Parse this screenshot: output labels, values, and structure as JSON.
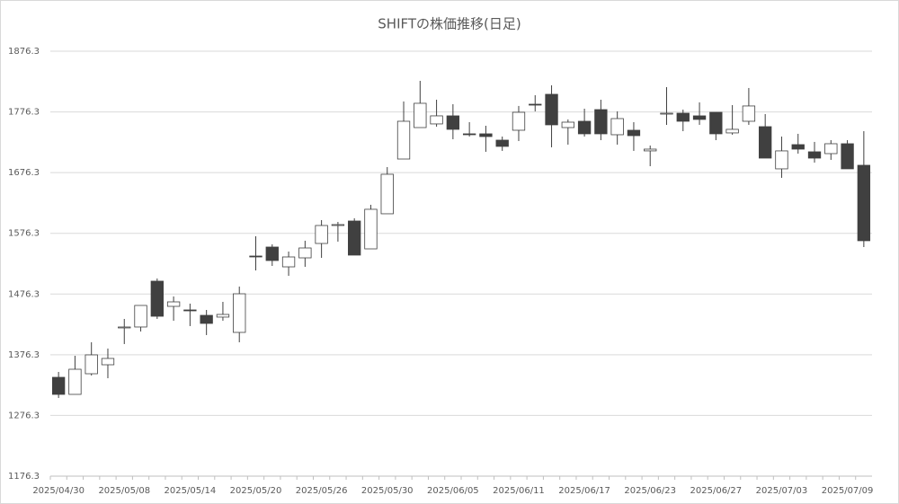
{
  "chart_data": {
    "type": "candlestick",
    "title": "SHIFTの株価推移(日足)",
    "categories": [
      "2025/04/30",
      null,
      null,
      null,
      "2025/05/08",
      null,
      null,
      null,
      "2025/05/14",
      null,
      null,
      null,
      "2025/05/20",
      null,
      null,
      null,
      "2025/05/26",
      null,
      null,
      null,
      "2025/05/30",
      null,
      null,
      null,
      "2025/06/05",
      null,
      null,
      null,
      "2025/06/11",
      null,
      null,
      null,
      "2025/06/17",
      null,
      null,
      null,
      "2025/06/23",
      null,
      null,
      null,
      "2025/06/27",
      null,
      null,
      null,
      "2025/07/03",
      null,
      null,
      null,
      "2025/07/09",
      null
    ],
    "open": [
      1339.1,
      1311.0,
      1345.0,
      1359.8,
      1420.5,
      1422.0,
      1497.5,
      1456.0,
      1450.1,
      1441.2,
      1438.3,
      1413.1,
      1538.9,
      1553.7,
      1521.1,
      1535.9,
      1559.6,
      1589.2,
      1596.6,
      1550.7,
      1608.5,
      1698.7,
      1750.5,
      1756.5,
      1769.8,
      1740.2,
      1740.2,
      1729.8,
      1746.1,
      1789.0,
      1805.3,
      1750.5,
      1760.9,
      1780.1,
      1738.7,
      1746.1,
      1712.1,
      1772.7,
      1774.2,
      1769.8,
      1775.7,
      1741.7,
      1760.9,
      1752.0,
      1682.5,
      1722.4,
      1710.6,
      1707.6,
      1723.9,
      1688.4
    ],
    "high": [
      1348.0,
      1374.6,
      1396.8,
      1386.5,
      1435.3,
      1457.5,
      1501.9,
      1472.3,
      1460.5,
      1450.1,
      1463.4,
      1488.6,
      1571.5,
      1558.1,
      1546.3,
      1564.1,
      1598.1,
      1595.1,
      1601.1,
      1623.3,
      1685.4,
      1793.5,
      1827.5,
      1796.4,
      1789.0,
      1759.4,
      1753.5,
      1735.7,
      1786.1,
      1803.8,
      1820.1,
      1763.9,
      1781.6,
      1796.4,
      1777.2,
      1759.4,
      1720.9,
      1817.1,
      1780.1,
      1792.0,
      1775.7,
      1787.5,
      1815.7,
      1772.7,
      1735.7,
      1740.2,
      1726.9,
      1729.8,
      1729.8,
      1744.6
    ],
    "low": [
      1305.1,
      1311.0,
      1342.1,
      1337.6,
      1393.9,
      1414.6,
      1435.3,
      1432.3,
      1423.5,
      1408.7,
      1432.3,
      1396.8,
      1515.2,
      1522.6,
      1506.3,
      1521.1,
      1535.9,
      1562.6,
      1540.4,
      1550.7,
      1608.5,
      1698.7,
      1750.5,
      1752.0,
      1731.3,
      1735.7,
      1710.6,
      1712.1,
      1728.3,
      1777.2,
      1718.0,
      1722.4,
      1735.7,
      1729.8,
      1722.4,
      1712.1,
      1686.9,
      1755.0,
      1744.6,
      1755.0,
      1729.8,
      1738.7,
      1755.0,
      1700.2,
      1667.7,
      1707.6,
      1692.8,
      1697.3,
      1682.5,
      1553.7
    ],
    "close": [
      1311.0,
      1352.4,
      1376.1,
      1370.2,
      1422.0,
      1457.5,
      1439.7,
      1463.4,
      1448.6,
      1427.9,
      1442.7,
      1476.7,
      1537.4,
      1531.5,
      1537.4,
      1552.2,
      1589.2,
      1590.7,
      1540.4,
      1615.9,
      1673.6,
      1760.9,
      1790.5,
      1769.8,
      1747.6,
      1738.7,
      1735.7,
      1719.5,
      1775.7,
      1787.5,
      1755.0,
      1759.4,
      1740.2,
      1740.2,
      1765.3,
      1737.2,
      1715.0,
      1774.2,
      1760.9,
      1763.9,
      1740.2,
      1747.6,
      1786.1,
      1700.2,
      1712.1,
      1715.0,
      1700.2,
      1723.9,
      1682.5,
      1564.1
    ],
    "up_color": "#ffffff",
    "down_color": "#404040",
    "edge_color": "#404040",
    "ylim": [
      1176.3,
      1876.3
    ],
    "yticks": [
      1176.3,
      1276.3,
      1376.3,
      1476.3,
      1576.3,
      1676.3,
      1776.3,
      1876.3
    ],
    "grid": true
  }
}
